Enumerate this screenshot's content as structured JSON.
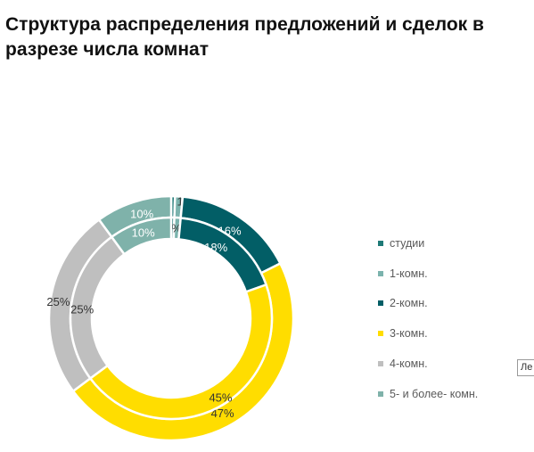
{
  "chart_data": {
    "type": "donut",
    "title": "Структура распределения предложений и сделок в разрезе числа комнат",
    "categories": [
      "студии",
      "1-комн.",
      "2-комн.",
      "3-комн.",
      "4-комн.",
      "5- и более- комн."
    ],
    "colors": [
      "#1f7a77",
      "#7bb3ad",
      "#025e66",
      "#ffdd00",
      "#bfbfbf",
      "#7fb2aa"
    ],
    "rings": [
      {
        "ring": "outer",
        "values": [
          0.5,
          1,
          16,
          47,
          25,
          10
        ],
        "labels": [
          "",
          "1%",
          "16%",
          "47%",
          "25%",
          "10%"
        ]
      },
      {
        "ring": "inner",
        "values": [
          0.5,
          1,
          18,
          45,
          25,
          10
        ],
        "labels": [
          "",
          "1%",
          "18%",
          "45%",
          "25%",
          "10%"
        ]
      }
    ],
    "legend_position": "right",
    "grid": false
  },
  "tooltip": {
    "text": "Ле"
  }
}
